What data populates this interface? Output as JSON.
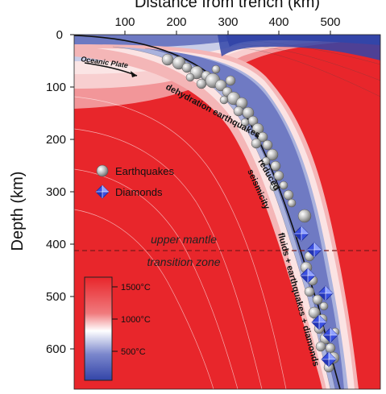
{
  "axes": {
    "x_title": "Distance from trench (km)",
    "y_title": "Depth (km)",
    "x_ticks": [
      "100",
      "200",
      "300",
      "400",
      "500"
    ],
    "y_ticks": [
      "0",
      "100",
      "200",
      "300",
      "400",
      "500",
      "600"
    ]
  },
  "labels": {
    "oceanic_plate": "Oceanic Plate",
    "dehydration": "dehydration earthquakes",
    "reduced": "reduced",
    "seismicity": "seismicity",
    "fluids": "fluids + earthquakes + diamonds",
    "upper_mantle": "upper mantle",
    "transition_zone": "transition zone"
  },
  "legend": {
    "earthquakes": "Earthquakes",
    "diamonds": "Diamonds"
  },
  "colorbar": {
    "labels": [
      "1500°C",
      "1000°C",
      "500°C"
    ]
  },
  "colors": {
    "hot": "#e8262b",
    "warm": "#f07a7d",
    "white": "#ffffff",
    "cool": "#7a86cc",
    "cold": "#3345a8",
    "diamond": "#3a4fe0"
  }
}
